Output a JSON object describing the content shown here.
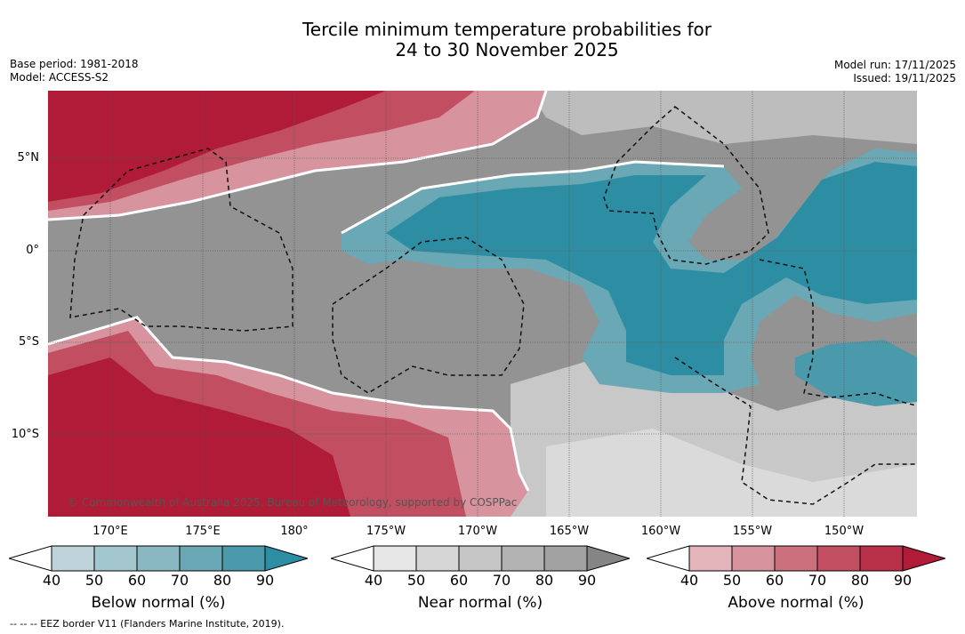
{
  "title": {
    "line1": "Tercile minimum temperature probabilities for",
    "line2": "24 to 30 November 2025"
  },
  "meta": {
    "base_period": "Base period: 1981-2018",
    "model": "Model: ACCESS-S2",
    "model_run": "Model run: 17/11/2025",
    "issued": "Issued: 19/11/2025"
  },
  "axes": {
    "lat_labels": [
      "5°N",
      "0°",
      "5°S",
      "10°S"
    ],
    "lon_labels": [
      "170°E",
      "175°E",
      "180°",
      "175°W",
      "170°W",
      "165°W",
      "160°W",
      "155°W",
      "150°W"
    ]
  },
  "copyright": "© Commonwealth of Australia 2025, Bureau of Meteorology, supported by COSPPac",
  "colorbars": [
    {
      "title": "Below normal (%)",
      "ticks": [
        "40",
        "50",
        "60",
        "70",
        "80",
        "90"
      ],
      "colors": [
        "#bdd3d9",
        "#a4c6ce",
        "#89b7c2",
        "#6aa8b5",
        "#4b9aab",
        "#2d8ea3"
      ]
    },
    {
      "title": "Near normal (%)",
      "ticks": [
        "40",
        "50",
        "60",
        "70",
        "80",
        "90"
      ],
      "colors": [
        "#e6e6e6",
        "#d6d6d6",
        "#c6c6c6",
        "#b3b3b3",
        "#a2a2a2",
        "#858585"
      ]
    },
    {
      "title": "Above normal (%)",
      "ticks": [
        "40",
        "50",
        "60",
        "70",
        "80",
        "90"
      ],
      "colors": [
        "#e3b5bb",
        "#d8949e",
        "#cc707e",
        "#c24e61",
        "#b83148",
        "#b01c37"
      ]
    }
  ],
  "footnote": "--  --  -- EEZ border V11 (Flanders Marine Institute, 2019)."
}
